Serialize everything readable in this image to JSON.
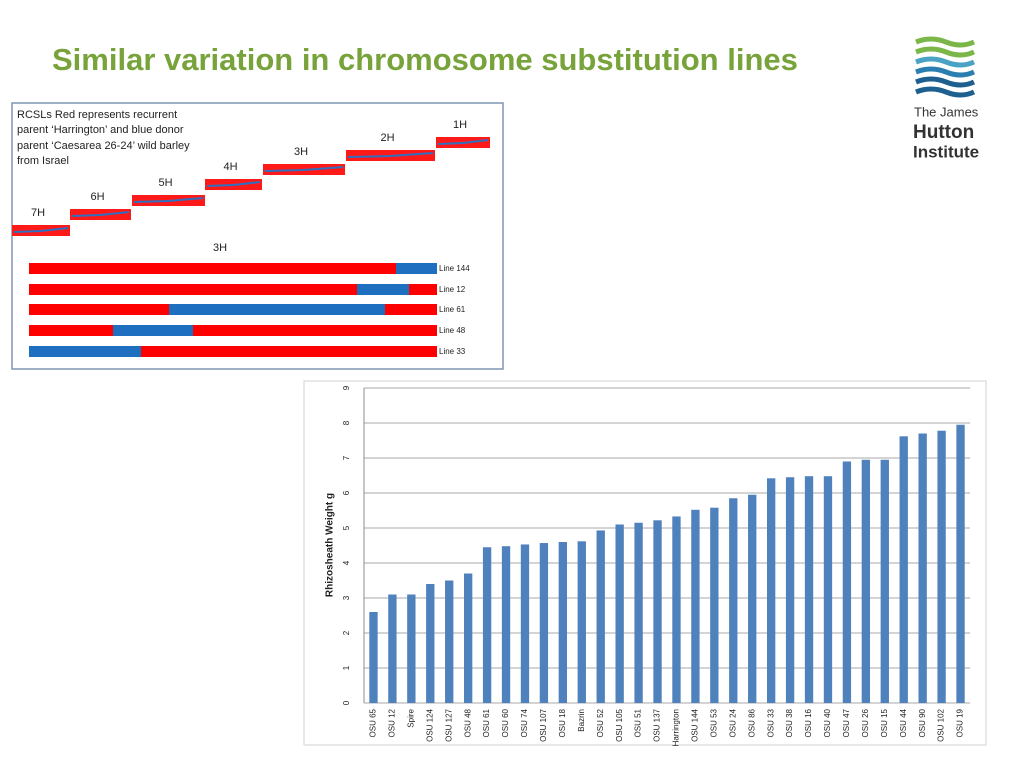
{
  "slide": {
    "title": "Similar variation in chromosome substitution lines"
  },
  "logo": {
    "lines": [
      "The James",
      "Hutton",
      "Institute"
    ]
  },
  "diagram": {
    "description": [
      "RCSLs Red represents recurrent",
      "parent ‘Harrington’ and blue donor",
      "parent ‘Caesarea 26-24’ wild barley",
      "from Israel"
    ],
    "chromosomes": [
      "7H",
      "6H",
      "5H",
      "4H",
      "3H",
      "2H",
      "1H"
    ],
    "detail_title": "3H",
    "lines": [
      "Line 144",
      "Line 12",
      "Line 61",
      "Line 48",
      "Line 33"
    ]
  },
  "chart_data": {
    "type": "bar",
    "y_label": "Rhizosheath Weight g",
    "categories": [
      "OSU 65",
      "OSU 12",
      "Spire",
      "OSU 124",
      "OSU 127",
      "OSU 48",
      "OSU 61",
      "OSU 60",
      "OSU 74",
      "OSU 107",
      "OSU 18",
      "Bazrin",
      "OSU 52",
      "OSU 105",
      "OSU 51",
      "OSU 137",
      "Harrington",
      "OSU 144",
      "OSU 53",
      "OSU 24",
      "OSU 86",
      "OSU 33",
      "OSU 38",
      "OSU 16",
      "OSU 40",
      "OSU 47",
      "OSU 26",
      "OSU 15",
      "OSU 44",
      "OSU 90",
      "OSU 102",
      "OSU 19"
    ],
    "values": [
      2.6,
      3.1,
      3.1,
      3.4,
      3.5,
      3.7,
      4.45,
      4.48,
      4.53,
      4.57,
      4.6,
      4.62,
      4.93,
      5.1,
      5.15,
      5.22,
      5.33,
      5.52,
      5.58,
      5.85,
      5.95,
      6.42,
      6.45,
      6.48,
      6.48,
      6.9,
      6.95,
      6.95,
      7.62,
      7.7,
      7.78,
      7.95
    ],
    "color": "#4f81bd",
    "ylim": [
      0,
      9
    ],
    "yticks": [
      0,
      1,
      2,
      3,
      4,
      5,
      6,
      7,
      8,
      9
    ],
    "grid": true
  }
}
